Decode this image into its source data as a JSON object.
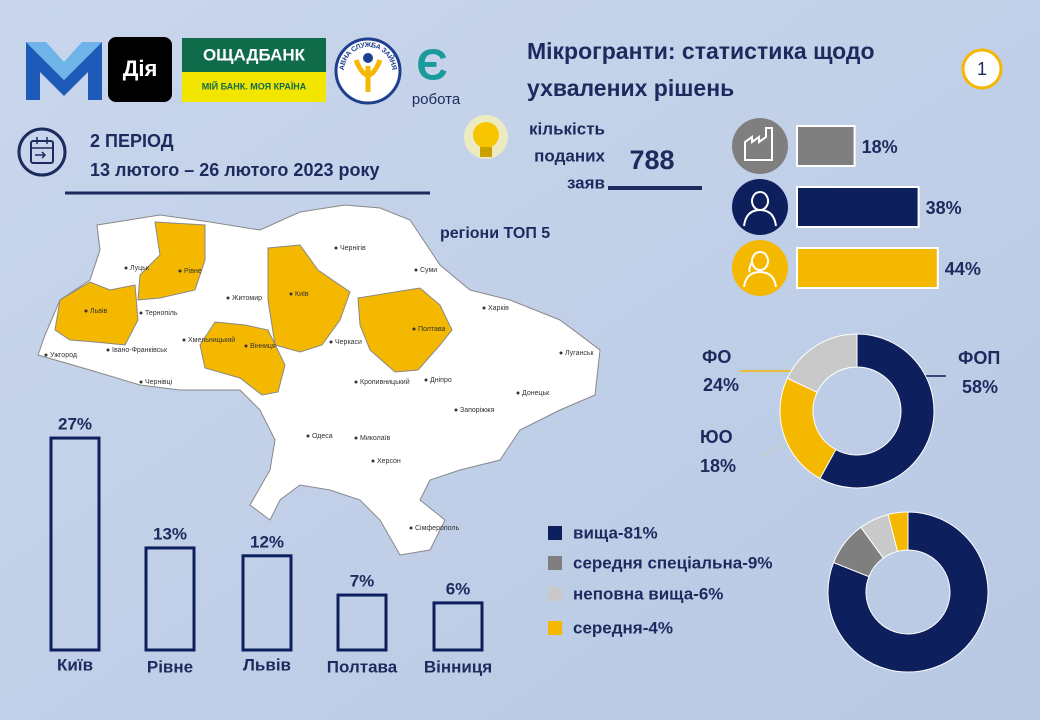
{
  "header": {
    "logos": {
      "diia": "Дія",
      "oschadbank": "ОЩАДБАНК",
      "oschadbank_slogan": "МІЙ БАНК. МОЯ КРАЇНА",
      "employment_service": "ДЕРЖАВНА СЛУЖБА ЗАЙНЯТОСТІ",
      "ye": "Є",
      "robota": "робота"
    },
    "title_line1": "Мікрогранти: статистика щодо",
    "title_line2": "ухвалених рішень",
    "page": "1"
  },
  "period": {
    "label": "2 ПЕРІОД",
    "dates": "13 лютого – 26 лютого 2023 року"
  },
  "applications": {
    "label_lines": [
      "кількість",
      "поданих",
      "заяв"
    ],
    "value": "788"
  },
  "map": {
    "title": "регіони ТОП 5",
    "cities": [
      "Луцьк",
      "Рівне",
      "Житомир",
      "Київ",
      "Чернігів",
      "Суми",
      "Харків",
      "Полтава",
      "Львів",
      "Тернопіль",
      "Хмельницький",
      "Вінниця",
      "Черкаси",
      "Ужгород",
      "Івано-Франківськ",
      "Чернівці",
      "Кропивницький",
      "Дніпро",
      "Луганськ",
      "Донецьк",
      "Запоріжжя",
      "Миколаїв",
      "Одеса",
      "Херсон",
      "Сімферополь"
    ]
  },
  "chart_data": [
    {
      "type": "bar",
      "orientation": "horizontal",
      "values": [
        18,
        38,
        44
      ],
      "value_labels": [
        "18%",
        "38%",
        "44%"
      ],
      "colors": [
        "#7f7f7f",
        "#0d1f5c",
        "#f5b800"
      ]
    },
    {
      "type": "bar",
      "orientation": "vertical",
      "categories": [
        "Київ",
        "Рівне",
        "Львів",
        "Полтава",
        "Вінниця"
      ],
      "values": [
        27,
        13,
        12,
        7,
        6
      ],
      "value_labels": [
        "27%",
        "13%",
        "12%",
        "7%",
        "6%"
      ],
      "color": "#0d1f5c"
    },
    {
      "type": "donut",
      "categories": [
        "ФОП",
        "ФО",
        "ЮО"
      ],
      "values": [
        58,
        24,
        18
      ],
      "value_labels": [
        "58%",
        "24%",
        "18%"
      ],
      "colors": [
        "#0d1f5c",
        "#f5b800",
        "#c9c9c9"
      ]
    },
    {
      "type": "donut",
      "legend": true,
      "categories": [
        "вища-81%",
        "середня спеціальна-9%",
        "неповна вища-6%",
        "середня-4%"
      ],
      "values": [
        81,
        9,
        6,
        4
      ],
      "colors": [
        "#0d1f5c",
        "#7f7f7f",
        "#c9c9c9",
        "#f5b800"
      ]
    }
  ]
}
